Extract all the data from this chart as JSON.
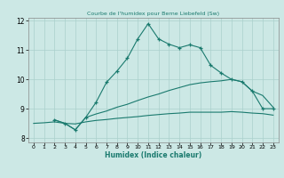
{
  "line1_x": [
    2,
    3,
    4,
    5,
    6,
    7,
    8,
    9,
    10,
    11,
    12,
    13,
    14,
    15,
    16,
    17,
    18,
    19,
    20,
    21,
    22,
    23
  ],
  "line1_y": [
    8.62,
    8.5,
    8.28,
    8.7,
    9.22,
    9.9,
    10.28,
    10.72,
    11.38,
    11.9,
    11.38,
    11.2,
    11.08,
    11.18,
    11.08,
    10.48,
    10.22,
    10.0,
    9.92,
    9.6,
    9.0,
    9.0
  ],
  "line2_x": [
    2,
    3,
    4,
    5,
    6,
    7,
    8,
    9,
    10,
    11,
    12,
    13,
    14,
    15,
    16,
    17,
    18,
    19,
    20,
    21,
    22,
    23
  ],
  "line2_y": [
    8.62,
    8.5,
    8.28,
    8.7,
    8.82,
    8.92,
    9.05,
    9.15,
    9.28,
    9.4,
    9.5,
    9.62,
    9.72,
    9.82,
    9.88,
    9.92,
    9.95,
    10.0,
    9.92,
    9.6,
    9.45,
    9.05
  ],
  "line3_x": [
    0,
    1,
    2,
    3,
    4,
    5,
    6,
    7,
    8,
    9,
    10,
    11,
    12,
    13,
    14,
    15,
    16,
    17,
    18,
    19,
    20,
    21,
    22,
    23
  ],
  "line3_y": [
    8.5,
    8.52,
    8.55,
    8.5,
    8.48,
    8.55,
    8.6,
    8.63,
    8.67,
    8.7,
    8.73,
    8.77,
    8.8,
    8.83,
    8.85,
    8.88,
    8.88,
    8.88,
    8.88,
    8.9,
    8.88,
    8.85,
    8.83,
    8.78
  ],
  "color": "#1a7a6e",
  "bg_color": "#cce8e5",
  "grid_color": "#aad0cc",
  "xlabel": "Humidex (Indice chaleur)",
  "title": "Courbe de l'humidex pour Berne Liebefeld (Sw)",
  "xlim": [
    -0.5,
    23.5
  ],
  "ylim": [
    7.85,
    12.1
  ],
  "yticks": [
    8,
    9,
    10,
    11,
    12
  ],
  "xticks": [
    0,
    1,
    2,
    3,
    4,
    5,
    6,
    7,
    8,
    9,
    10,
    11,
    12,
    13,
    14,
    15,
    16,
    17,
    18,
    19,
    20,
    21,
    22,
    23
  ]
}
